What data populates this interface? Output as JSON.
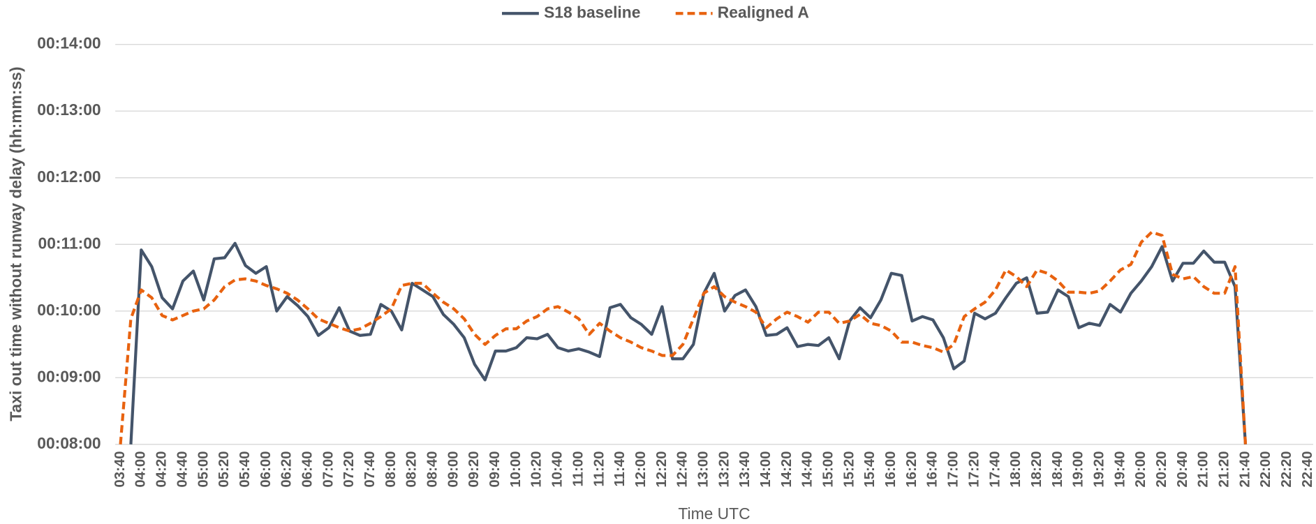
{
  "chart_data": {
    "type": "line",
    "y_label": "Taxi out time without runway delay (hh:mm:ss)",
    "x_label": "Time UTC",
    "categories": [
      "03:40",
      null,
      "04:00",
      null,
      "04:20",
      null,
      "04:40",
      null,
      "05:00",
      null,
      "05:20",
      null,
      "05:40",
      null,
      "06:00",
      null,
      "06:20",
      null,
      "06:40",
      null,
      "07:00",
      null,
      "07:20",
      null,
      "07:40",
      null,
      "08:00",
      null,
      "08:20",
      null,
      "08:40",
      null,
      "09:00",
      null,
      "09:20",
      null,
      "09:40",
      null,
      "10:00",
      null,
      "10:20",
      null,
      "10:40",
      null,
      "11:00",
      null,
      "11:20",
      null,
      "11:40",
      null,
      "12:00",
      null,
      "12:20",
      null,
      "12:40",
      null,
      "13:00",
      null,
      "13:20",
      null,
      "13:40",
      null,
      "14:00",
      null,
      "14:20",
      null,
      "14:40",
      null,
      "15:00",
      null,
      "15:20",
      null,
      "15:40",
      null,
      "16:00",
      null,
      "16:20",
      null,
      "16:40",
      null,
      "17:00",
      null,
      "17:20",
      null,
      "17:40",
      null,
      "18:00",
      null,
      "18:20",
      null,
      "18:40",
      null,
      "19:00",
      null,
      "19:20",
      null,
      "19:40",
      null,
      "20:00",
      null,
      "20:20",
      null,
      "20:40",
      null,
      "21:00",
      null,
      "21:20",
      null,
      "21:40",
      null,
      "22:00",
      null,
      "22:20",
      null,
      "22:40"
    ],
    "series": [
      {
        "name": "S18 baseline",
        "color": "#44546a",
        "dashed": false,
        "values": [
          null,
          480,
          655,
          640,
          612,
          602,
          627,
          636,
          610,
          647,
          648,
          661,
          641,
          634,
          640,
          600,
          613,
          605,
          595,
          578,
          585,
          603,
          582,
          578,
          579,
          606,
          600,
          583,
          625,
          619,
          613,
          597,
          588,
          576,
          552,
          538,
          564,
          564,
          567,
          576,
          575,
          579,
          567,
          564,
          566,
          563,
          559,
          603,
          606,
          594,
          588,
          579,
          604,
          557,
          557,
          570,
          616,
          634,
          600,
          614,
          619,
          604,
          578,
          579,
          585,
          568,
          570,
          569,
          576,
          557,
          591,
          603,
          594,
          610,
          634,
          632,
          591,
          595,
          592,
          576,
          548,
          555,
          598,
          593,
          598,
          612,
          625,
          630,
          598,
          599,
          619,
          613,
          585,
          589,
          587,
          606,
          599,
          616,
          627,
          640,
          658,
          627,
          643,
          643,
          654,
          644,
          644,
          622,
          480,
          null,
          null,
          null,
          null,
          null,
          null
        ]
      },
      {
        "name": "Realigned A",
        "color": "#e8620f",
        "dashed": true,
        "values": [
          480,
          593,
          619,
          612,
          596,
          592,
          596,
          600,
          602,
          610,
          622,
          628,
          629,
          627,
          623,
          620,
          616,
          610,
          602,
          593,
          589,
          585,
          582,
          584,
          589,
          595,
          602,
          623,
          625,
          625,
          616,
          608,
          602,
          593,
          579,
          570,
          578,
          584,
          584,
          591,
          595,
          602,
          604,
          599,
          593,
          579,
          589,
          582,
          576,
          572,
          567,
          564,
          560,
          560,
          570,
          593,
          616,
          622,
          613,
          608,
          604,
          599,
          585,
          593,
          599,
          595,
          590,
          599,
          599,
          589,
          591,
          597,
          589,
          587,
          582,
          572,
          572,
          569,
          567,
          563,
          570,
          595,
          602,
          608,
          619,
          637,
          631,
          622,
          637,
          634,
          627,
          617,
          617,
          616,
          618,
          627,
          637,
          642,
          662,
          671,
          668,
          633,
          629,
          631,
          622,
          616,
          616,
          640,
          480,
          null,
          null,
          null,
          null,
          null,
          null
        ]
      }
    ],
    "ylim": [
      480,
      840
    ],
    "yticks": [
      {
        "value": 480,
        "label": "00:08:00"
      },
      {
        "value": 540,
        "label": "00:09:00"
      },
      {
        "value": 600,
        "label": "00:10:00"
      },
      {
        "value": 660,
        "label": "00:11:00"
      },
      {
        "value": 720,
        "label": "00:12:00"
      },
      {
        "value": 780,
        "label": "00:13:00"
      },
      {
        "value": 840,
        "label": "00:14:00"
      }
    ],
    "grid": true,
    "legend": "top"
  }
}
